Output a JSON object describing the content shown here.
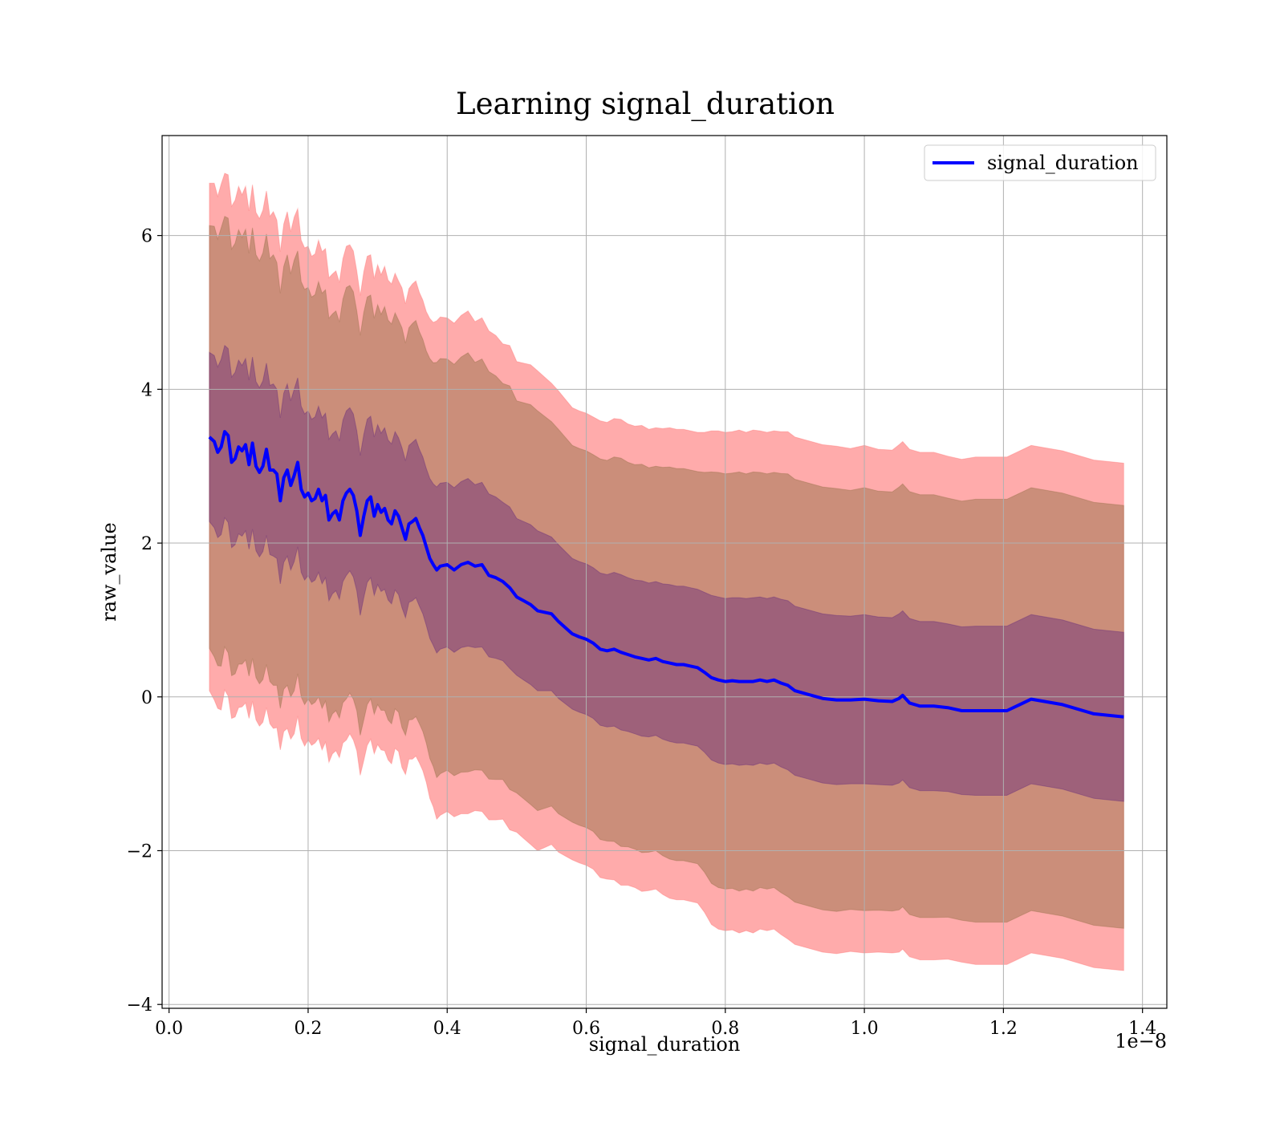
{
  "chart_data": {
    "type": "area",
    "title": "Learning signal_duration",
    "xlabel": "signal_duration",
    "ylabel": "raw_value",
    "x_offset_label": "1e−8",
    "xlim": [
      -0.01,
      1.435
    ],
    "ylim": [
      -4.05,
      7.3
    ],
    "x_ticks": [
      0.0,
      0.2,
      0.4,
      0.6,
      0.8,
      1.0,
      1.2,
      1.4
    ],
    "x_tick_labels": [
      "0.0",
      "0.2",
      "0.4",
      "0.6",
      "0.8",
      "1.0",
      "1.2",
      "1.4"
    ],
    "y_ticks": [
      -4,
      -2,
      0,
      2,
      4,
      6
    ],
    "y_tick_labels": [
      "−4",
      "−2",
      "0",
      "2",
      "4",
      "6"
    ],
    "grid": true,
    "legend_position": "top-right",
    "x": [
      0.058,
      0.065,
      0.07,
      0.075,
      0.08,
      0.085,
      0.09,
      0.095,
      0.1,
      0.105,
      0.11,
      0.115,
      0.12,
      0.125,
      0.13,
      0.135,
      0.14,
      0.145,
      0.15,
      0.155,
      0.16,
      0.165,
      0.17,
      0.175,
      0.18,
      0.185,
      0.19,
      0.195,
      0.2,
      0.205,
      0.21,
      0.215,
      0.22,
      0.225,
      0.23,
      0.235,
      0.24,
      0.245,
      0.25,
      0.255,
      0.26,
      0.265,
      0.27,
      0.275,
      0.28,
      0.285,
      0.29,
      0.295,
      0.3,
      0.305,
      0.31,
      0.315,
      0.32,
      0.325,
      0.33,
      0.335,
      0.34,
      0.345,
      0.35,
      0.355,
      0.36,
      0.365,
      0.37,
      0.375,
      0.38,
      0.385,
      0.39,
      0.4,
      0.41,
      0.42,
      0.43,
      0.44,
      0.45,
      0.46,
      0.47,
      0.48,
      0.49,
      0.5,
      0.51,
      0.52,
      0.53,
      0.54,
      0.55,
      0.56,
      0.57,
      0.58,
      0.59,
      0.6,
      0.61,
      0.62,
      0.63,
      0.64,
      0.65,
      0.66,
      0.67,
      0.68,
      0.69,
      0.7,
      0.71,
      0.72,
      0.73,
      0.74,
      0.75,
      0.76,
      0.77,
      0.78,
      0.79,
      0.8,
      0.81,
      0.82,
      0.83,
      0.84,
      0.85,
      0.86,
      0.87,
      0.88,
      0.89,
      0.9,
      0.92,
      0.94,
      0.96,
      0.98,
      1.0,
      1.02,
      1.04,
      1.05,
      1.055,
      1.065,
      1.08,
      1.1,
      1.12,
      1.14,
      1.16,
      1.18,
      1.205,
      1.24,
      1.285,
      1.33,
      1.373
    ],
    "series": [
      {
        "name": "signal_duration",
        "color": "#0000ff",
        "values": [
          3.38,
          3.32,
          3.18,
          3.25,
          3.45,
          3.4,
          3.05,
          3.1,
          3.25,
          3.2,
          3.28,
          3.02,
          3.3,
          3.0,
          2.92,
          3.0,
          3.22,
          2.95,
          2.95,
          2.9,
          2.55,
          2.85,
          2.95,
          2.75,
          2.88,
          3.05,
          2.7,
          2.6,
          2.65,
          2.55,
          2.58,
          2.7,
          2.55,
          2.62,
          2.3,
          2.38,
          2.42,
          2.3,
          2.55,
          2.65,
          2.7,
          2.62,
          2.42,
          2.1,
          2.35,
          2.55,
          2.6,
          2.35,
          2.5,
          2.4,
          2.45,
          2.3,
          2.25,
          2.42,
          2.35,
          2.2,
          2.05,
          2.25,
          2.28,
          2.32,
          2.2,
          2.1,
          1.95,
          1.8,
          1.72,
          1.65,
          1.7,
          1.72,
          1.65,
          1.72,
          1.75,
          1.7,
          1.72,
          1.58,
          1.55,
          1.5,
          1.42,
          1.3,
          1.25,
          1.2,
          1.12,
          1.1,
          1.08,
          0.98,
          0.9,
          0.82,
          0.78,
          0.75,
          0.7,
          0.62,
          0.6,
          0.62,
          0.58,
          0.55,
          0.52,
          0.5,
          0.48,
          0.5,
          0.46,
          0.44,
          0.42,
          0.42,
          0.4,
          0.38,
          0.32,
          0.25,
          0.22,
          0.2,
          0.21,
          0.2,
          0.2,
          0.2,
          0.22,
          0.2,
          0.22,
          0.18,
          0.15,
          0.08,
          0.03,
          -0.02,
          -0.04,
          -0.04,
          -0.03,
          -0.05,
          -0.06,
          -0.02,
          0.02,
          -0.08,
          -0.12,
          -0.12,
          -0.14,
          -0.18,
          -0.18,
          -0.18,
          -0.18,
          -0.03,
          -0.1,
          -0.22,
          -0.26
        ]
      }
    ],
    "bands": [
      {
        "name": "outer",
        "color": "#ff6666",
        "opacity": 0.55,
        "lower_sigma_multiplier": 3,
        "sigma": [
          1.1,
          1.12,
          1.11,
          1.14,
          1.12,
          1.13,
          1.11,
          1.12,
          1.13,
          1.11,
          1.12,
          1.1,
          1.12,
          1.1,
          1.1,
          1.11,
          1.12,
          1.1,
          1.12,
          1.1,
          1.08,
          1.1,
          1.12,
          1.1,
          1.12,
          1.1,
          1.08,
          1.08,
          1.07,
          1.06,
          1.06,
          1.08,
          1.08,
          1.07,
          1.05,
          1.04,
          1.04,
          1.03,
          1.05,
          1.07,
          1.06,
          1.06,
          1.04,
          1.04,
          1.06,
          1.06,
          1.05,
          1.03,
          1.04,
          1.03,
          1.05,
          1.04,
          1.04,
          1.03,
          1.02,
          1.04,
          1.02,
          1.02,
          1.03,
          1.03,
          1.02,
          1.02,
          1.02,
          1.04,
          1.05,
          1.08,
          1.08,
          1.07,
          1.07,
          1.08,
          1.09,
          1.06,
          1.07,
          1.06,
          1.05,
          1.03,
          1.05,
          1.02,
          1.03,
          1.04,
          1.04,
          1.02,
          1.0,
          1.0,
          0.99,
          0.98,
          0.98,
          0.98,
          0.98,
          0.99,
          0.99,
          1.0,
          1.01,
          1.0,
          1.0,
          1.01,
          1.0,
          1.0,
          1.01,
          1.02,
          1.02,
          1.02,
          1.02,
          1.02,
          1.04,
          1.07,
          1.08,
          1.08,
          1.08,
          1.09,
          1.08,
          1.09,
          1.08,
          1.08,
          1.08,
          1.09,
          1.1,
          1.1,
          1.1,
          1.1,
          1.1,
          1.09,
          1.1,
          1.09,
          1.09,
          1.1,
          1.1,
          1.1,
          1.1,
          1.1,
          1.09,
          1.09,
          1.1,
          1.1,
          1.1,
          1.1,
          1.1,
          1.1,
          1.1
        ]
      },
      {
        "name": "middle",
        "color": "#8b6a3e",
        "opacity": 0.45,
        "lower_sigma_multiplier": 2.5
      },
      {
        "name": "inner",
        "color": "#5a1f7a",
        "opacity": 0.4,
        "lower_sigma_multiplier": 1
      }
    ]
  }
}
